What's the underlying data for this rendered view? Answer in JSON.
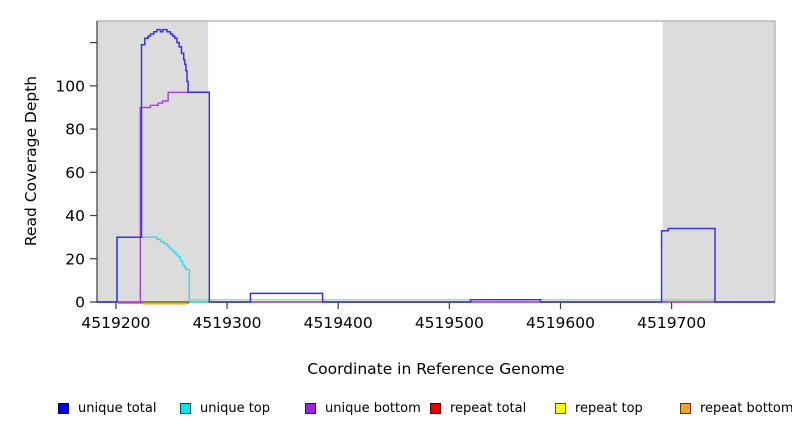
{
  "figure": {
    "xlabel": "Coordinate in Reference Genome",
    "ylabel": "Read Coverage Depth"
  },
  "chart_data": {
    "type": "line",
    "title": "",
    "xlabel": "Coordinate in Reference Genome",
    "ylabel": "Read Coverage Depth",
    "xlim": [
      4519183,
      4519793
    ],
    "ylim": [
      0,
      130
    ],
    "grid": false,
    "x_axis_ticks": [
      {
        "value": 4519200,
        "label": "4519200"
      },
      {
        "value": 4519300,
        "label": "4519300"
      },
      {
        "value": 4519400,
        "label": "4519400"
      },
      {
        "value": 4519500,
        "label": "4519500"
      },
      {
        "value": 4519600,
        "label": "4519600"
      },
      {
        "value": 4519700,
        "label": "4519700"
      }
    ],
    "y_axis_ticks": [
      {
        "value": 0,
        "label": "0"
      },
      {
        "value": 20,
        "label": "20"
      },
      {
        "value": 40,
        "label": "40"
      },
      {
        "value": 60,
        "label": "60"
      },
      {
        "value": 80,
        "label": "80"
      },
      {
        "value": 100,
        "label": "100"
      },
      {
        "value": 120,
        "label": ""
      }
    ],
    "shade_color": "#DCDCDC",
    "shaded_regions": [
      {
        "from": 4519183,
        "to": 4519283
      },
      {
        "from": 4519692,
        "to": 4519793
      }
    ],
    "series": [
      {
        "name": "unlabeled green baseline",
        "color": "#8FE08F",
        "opacity": 1,
        "width": 1.3,
        "offset": 0,
        "in_legend": false,
        "points": [
          [
            4519266,
            1
          ],
          [
            4519739,
            1
          ]
        ]
      },
      {
        "name": "repeat total",
        "color": "#E8336A",
        "opacity": 0.75,
        "width": 1.3,
        "offset": 1.2,
        "in_legend": true,
        "points": [
          [
            4519202,
            0
          ],
          [
            4519266,
            0
          ]
        ]
      },
      {
        "name": "repeat top",
        "color": "#FFFF00",
        "opacity": 1,
        "width": 1.3,
        "offset": 1.2,
        "in_legend": true,
        "points": [
          [
            4519224,
            0
          ],
          [
            4519264,
            0
          ]
        ]
      },
      {
        "name": "repeat bottom",
        "color": "#FF9414",
        "opacity": 1,
        "width": 1.4,
        "offset": 1.8,
        "in_legend": true,
        "points": [
          [
            4519224,
            0
          ],
          [
            4519264,
            0
          ]
        ]
      },
      {
        "name": "unique top",
        "color": "#2EDDE6",
        "opacity": 1,
        "width": 1.4,
        "offset": 0,
        "in_legend": true,
        "points": [
          [
            4519183,
            0
          ],
          [
            4519201,
            30
          ],
          [
            4519237,
            29
          ],
          [
            4519240,
            28
          ],
          [
            4519243,
            27
          ],
          [
            4519246,
            26
          ],
          [
            4519248,
            25
          ],
          [
            4519250,
            24
          ],
          [
            4519252,
            23
          ],
          [
            4519254,
            22
          ],
          [
            4519256,
            21
          ],
          [
            4519258,
            19
          ],
          [
            4519260,
            17
          ],
          [
            4519262,
            16
          ],
          [
            4519263,
            15
          ],
          [
            4519266,
            0
          ],
          [
            4519284,
            0
          ]
        ]
      },
      {
        "name": "unique bottom",
        "color": "#A93BE8",
        "opacity": 1,
        "width": 1.4,
        "offset": 0,
        "in_legend": true,
        "points": [
          [
            4519183,
            0
          ],
          [
            4519222,
            90
          ],
          [
            4519231,
            91
          ],
          [
            4519238,
            92
          ],
          [
            4519242,
            93
          ],
          [
            4519247,
            97
          ],
          [
            4519284,
            0
          ],
          [
            4519793,
            0
          ]
        ]
      },
      {
        "name": "unique total",
        "color": "#3434E0",
        "opacity": 1,
        "width": 1.5,
        "offset": 0,
        "in_legend": true,
        "points": [
          [
            4519183,
            0
          ],
          [
            4519201,
            30
          ],
          [
            4519223,
            119
          ],
          [
            4519226,
            122
          ],
          [
            4519229,
            123
          ],
          [
            4519231,
            124
          ],
          [
            4519234,
            125
          ],
          [
            4519237,
            126
          ],
          [
            4519240,
            125
          ],
          [
            4519242,
            126
          ],
          [
            4519246,
            125
          ],
          [
            4519249,
            124
          ],
          [
            4519251,
            123
          ],
          [
            4519253,
            122
          ],
          [
            4519255,
            120
          ],
          [
            4519257,
            118
          ],
          [
            4519259,
            115
          ],
          [
            4519261,
            112
          ],
          [
            4519262,
            110
          ],
          [
            4519263,
            107
          ],
          [
            4519264,
            102
          ],
          [
            4519265,
            97
          ],
          [
            4519284,
            0
          ],
          [
            4519321,
            4
          ],
          [
            4519386,
            0
          ],
          [
            4519519,
            1
          ],
          [
            4519582,
            0
          ],
          [
            4519691,
            33
          ],
          [
            4519697,
            34
          ],
          [
            4519739,
            0
          ],
          [
            4519793,
            0
          ]
        ]
      }
    ],
    "legend": {
      "position": "bottom",
      "items": [
        {
          "label": "unique total",
          "color": "#0000EE"
        },
        {
          "label": "unique top",
          "color": "#00E5EE"
        },
        {
          "label": "unique bottom",
          "color": "#A020F0"
        },
        {
          "label": "repeat total",
          "color": "#EE0000"
        },
        {
          "label": "repeat top",
          "color": "#FFFF00"
        },
        {
          "label": "repeat bottom",
          "color": "#FFA019"
        }
      ]
    }
  }
}
